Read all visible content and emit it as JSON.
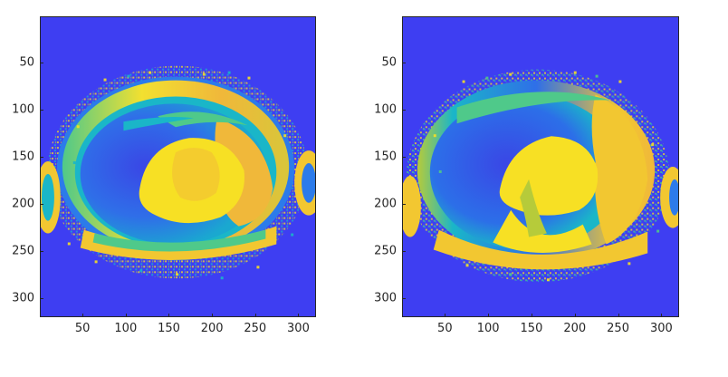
{
  "figure": {
    "panels": [
      {
        "id": "left",
        "x_ticks": [
          "50",
          "100",
          "150",
          "200",
          "250",
          "300"
        ],
        "y_ticks": [
          "50",
          "100",
          "150",
          "200",
          "250",
          "300"
        ]
      },
      {
        "id": "right",
        "x_ticks": [
          "50",
          "100",
          "150",
          "200",
          "250",
          "300"
        ],
        "y_ticks": [
          "50",
          "100",
          "150",
          "200",
          "250",
          "300"
        ]
      }
    ],
    "x_range": [
      0.5,
      320.5
    ],
    "y_range": [
      0.5,
      320.5
    ],
    "tick_values": [
      50,
      100,
      150,
      200,
      250,
      300
    ],
    "colormap": [
      "#3e3ef2",
      "#2c7bea",
      "#1ab6c8",
      "#4fc98a",
      "#b6cb3a",
      "#f2c731",
      "#f7e024"
    ]
  }
}
